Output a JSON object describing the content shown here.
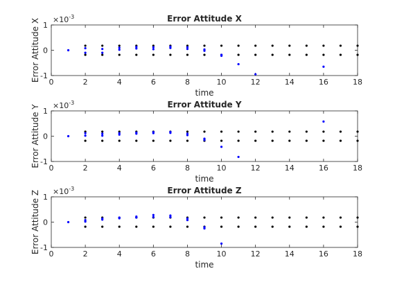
{
  "chart_data": [
    {
      "type": "scatter",
      "title": "Error Attitude X",
      "xlabel": "time",
      "ylabel": "Error Attitude X",
      "y_exponent_base": "×10",
      "y_exponent_power": "-3",
      "xlim": [
        0,
        18
      ],
      "ylim": [
        -1,
        1
      ],
      "xticks": [
        "0",
        "2",
        "4",
        "6",
        "8",
        "10",
        "12",
        "14",
        "16",
        "18"
      ],
      "yticks": [
        "-1",
        "0",
        "1"
      ],
      "grid": false,
      "series": [
        {
          "color": "#0000ff",
          "points": [
            [
              1,
              0.0
            ],
            [
              2,
              0.08
            ],
            [
              2,
              -0.1
            ],
            [
              3,
              0.05
            ],
            [
              3,
              -0.1
            ],
            [
              4,
              0.02
            ],
            [
              4,
              0.1
            ],
            [
              5,
              0.07
            ],
            [
              5,
              0.13
            ],
            [
              6,
              0.04
            ],
            [
              6,
              0.12
            ],
            [
              7,
              0.09
            ],
            [
              7,
              0.14
            ],
            [
              8,
              0.05
            ],
            [
              8,
              0.12
            ],
            [
              9,
              0.03
            ],
            [
              9,
              -0.02
            ],
            [
              10,
              -0.18
            ],
            [
              10,
              -0.22
            ],
            [
              11,
              -0.55
            ],
            [
              12,
              -0.95
            ],
            [
              16,
              -0.65
            ]
          ]
        },
        {
          "color": "#000000",
          "points": [
            [
              2,
              0.18
            ],
            [
              2,
              -0.18
            ],
            [
              3,
              0.18
            ],
            [
              3,
              -0.18
            ],
            [
              4,
              0.18
            ],
            [
              4,
              -0.18
            ],
            [
              5,
              0.18
            ],
            [
              5,
              -0.18
            ],
            [
              6,
              0.18
            ],
            [
              6,
              -0.18
            ],
            [
              7,
              0.18
            ],
            [
              7,
              -0.18
            ],
            [
              8,
              0.18
            ],
            [
              8,
              -0.18
            ],
            [
              9,
              0.18
            ],
            [
              9,
              -0.18
            ],
            [
              10,
              0.18
            ],
            [
              10,
              -0.18
            ],
            [
              11,
              0.18
            ],
            [
              11,
              -0.18
            ],
            [
              12,
              0.18
            ],
            [
              12,
              -0.18
            ],
            [
              13,
              0.18
            ],
            [
              13,
              -0.18
            ],
            [
              14,
              0.18
            ],
            [
              14,
              -0.18
            ],
            [
              15,
              0.18
            ],
            [
              15,
              -0.18
            ],
            [
              16,
              0.18
            ],
            [
              16,
              -0.18
            ],
            [
              17,
              0.18
            ],
            [
              17,
              -0.18
            ],
            [
              18,
              0.18
            ],
            [
              18,
              -0.18
            ]
          ]
        }
      ]
    },
    {
      "type": "scatter",
      "title": "Error Attitude Y",
      "xlabel": "time",
      "ylabel": "Error Attitude Y",
      "y_exponent_base": "×10",
      "y_exponent_power": "-3",
      "xlim": [
        0,
        18
      ],
      "ylim": [
        -1,
        1
      ],
      "xticks": [
        "0",
        "2",
        "4",
        "6",
        "8",
        "10",
        "12",
        "14",
        "16",
        "18"
      ],
      "yticks": [
        "-1",
        "0",
        "1"
      ],
      "grid": false,
      "series": [
        {
          "color": "#0000ff",
          "points": [
            [
              1,
              0.0
            ],
            [
              2,
              0.12
            ],
            [
              2,
              0.02
            ],
            [
              3,
              0.1
            ],
            [
              3,
              0.02
            ],
            [
              4,
              0.12
            ],
            [
              4,
              0.06
            ],
            [
              5,
              0.14
            ],
            [
              5,
              0.1
            ],
            [
              6,
              0.16
            ],
            [
              6,
              0.12
            ],
            [
              7,
              0.17
            ],
            [
              7,
              0.13
            ],
            [
              8,
              0.1
            ],
            [
              8,
              0.04
            ],
            [
              9,
              -0.1
            ],
            [
              9,
              -0.15
            ],
            [
              10,
              -0.42
            ],
            [
              11,
              -0.82
            ],
            [
              16,
              0.58
            ]
          ]
        },
        {
          "color": "#000000",
          "points": [
            [
              2,
              0.18
            ],
            [
              2,
              -0.18
            ],
            [
              3,
              0.18
            ],
            [
              3,
              -0.18
            ],
            [
              4,
              0.18
            ],
            [
              4,
              -0.18
            ],
            [
              5,
              0.18
            ],
            [
              5,
              -0.18
            ],
            [
              6,
              0.18
            ],
            [
              6,
              -0.18
            ],
            [
              7,
              0.18
            ],
            [
              7,
              -0.18
            ],
            [
              8,
              0.18
            ],
            [
              8,
              -0.18
            ],
            [
              9,
              0.18
            ],
            [
              9,
              -0.18
            ],
            [
              10,
              0.18
            ],
            [
              10,
              -0.18
            ],
            [
              11,
              0.18
            ],
            [
              11,
              -0.18
            ],
            [
              12,
              0.18
            ],
            [
              12,
              -0.18
            ],
            [
              13,
              0.18
            ],
            [
              13,
              -0.18
            ],
            [
              14,
              0.18
            ],
            [
              14,
              -0.18
            ],
            [
              15,
              0.18
            ],
            [
              15,
              -0.18
            ],
            [
              16,
              0.18
            ],
            [
              16,
              -0.18
            ],
            [
              17,
              0.18
            ],
            [
              17,
              -0.18
            ],
            [
              18,
              0.18
            ],
            [
              18,
              -0.18
            ]
          ]
        }
      ]
    },
    {
      "type": "scatter",
      "title": "Error Attitude Z",
      "xlabel": "time",
      "ylabel": "Error Attitude Z",
      "y_exponent_base": "×10",
      "y_exponent_power": "-3",
      "xlim": [
        0,
        18
      ],
      "ylim": [
        -1,
        1
      ],
      "xticks": [
        "0",
        "2",
        "4",
        "6",
        "8",
        "10",
        "12",
        "14",
        "16",
        "18"
      ],
      "yticks": [
        "-1",
        "0",
        "1"
      ],
      "grid": false,
      "series": [
        {
          "color": "#0000ff",
          "points": [
            [
              1,
              0.0
            ],
            [
              2,
              0.08
            ],
            [
              2,
              0.02
            ],
            [
              3,
              0.14
            ],
            [
              3,
              0.1
            ],
            [
              4,
              0.18
            ],
            [
              4,
              0.15
            ],
            [
              5,
              0.22
            ],
            [
              5,
              0.18
            ],
            [
              6,
              0.28
            ],
            [
              6,
              0.2
            ],
            [
              7,
              0.26
            ],
            [
              7,
              0.2
            ],
            [
              8,
              0.14
            ],
            [
              8,
              0.08
            ],
            [
              9,
              -0.2
            ],
            [
              9,
              -0.25
            ],
            [
              10,
              -0.85
            ]
          ]
        },
        {
          "color": "#000000",
          "points": [
            [
              2,
              0.18
            ],
            [
              2,
              -0.18
            ],
            [
              3,
              0.18
            ],
            [
              3,
              -0.18
            ],
            [
              4,
              0.18
            ],
            [
              4,
              -0.18
            ],
            [
              5,
              0.18
            ],
            [
              5,
              -0.18
            ],
            [
              6,
              0.18
            ],
            [
              6,
              -0.18
            ],
            [
              7,
              0.18
            ],
            [
              7,
              -0.18
            ],
            [
              8,
              0.18
            ],
            [
              8,
              -0.18
            ],
            [
              9,
              0.18
            ],
            [
              9,
              -0.18
            ],
            [
              10,
              0.18
            ],
            [
              10,
              -0.18
            ],
            [
              11,
              0.18
            ],
            [
              11,
              -0.18
            ],
            [
              12,
              0.18
            ],
            [
              12,
              -0.18
            ],
            [
              13,
              0.18
            ],
            [
              13,
              -0.18
            ],
            [
              14,
              0.18
            ],
            [
              14,
              -0.18
            ],
            [
              15,
              0.18
            ],
            [
              15,
              -0.18
            ],
            [
              16,
              0.18
            ],
            [
              16,
              -0.18
            ],
            [
              17,
              0.18
            ],
            [
              17,
              -0.18
            ],
            [
              18,
              0.18
            ],
            [
              18,
              -0.18
            ]
          ]
        }
      ]
    }
  ]
}
